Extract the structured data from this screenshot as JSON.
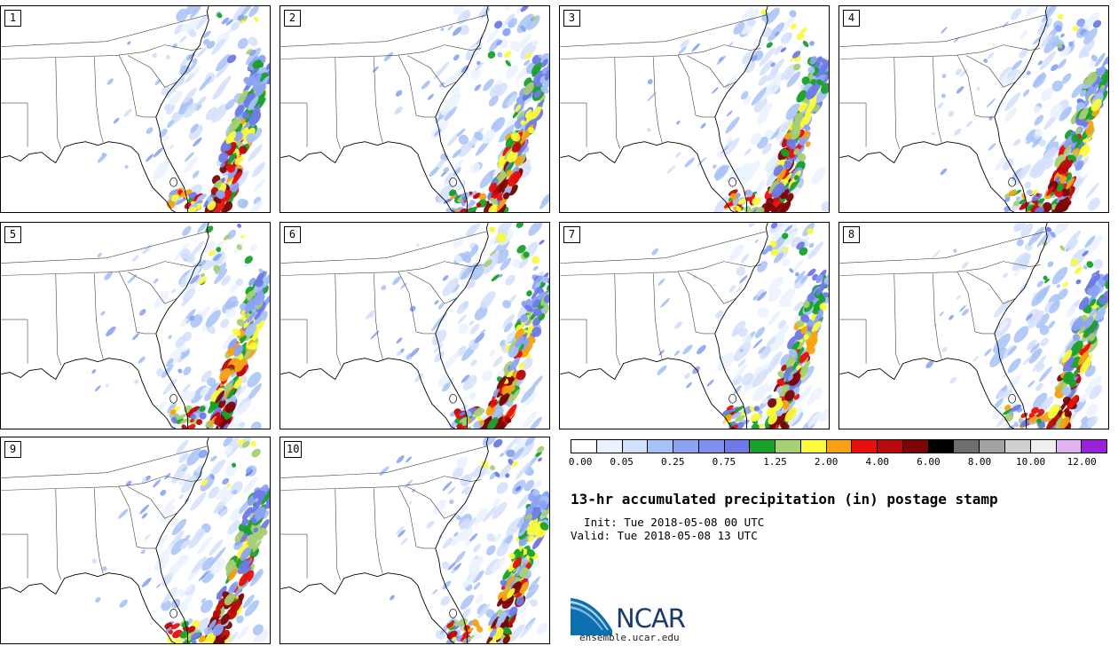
{
  "panels": [
    {
      "label": "1"
    },
    {
      "label": "2"
    },
    {
      "label": "3"
    },
    {
      "label": "4"
    },
    {
      "label": "5"
    },
    {
      "label": "6"
    },
    {
      "label": "7"
    },
    {
      "label": "8"
    },
    {
      "label": "9"
    },
    {
      "label": "10"
    }
  ],
  "colorbar": {
    "colors": [
      "#ffffff",
      "#eaf2fe",
      "#d3e0fb",
      "#a7c2f7",
      "#8ba3f3",
      "#7f90ee",
      "#6f7ae6",
      "#17a12b",
      "#a7cf73",
      "#fbfb3b",
      "#f6a214",
      "#e90f0f",
      "#b80a0a",
      "#7a0505",
      "#000000",
      "#6e6e6e",
      "#a3a3a3",
      "#cfcfcf",
      "#efefef",
      "#e2b2f2",
      "#9b21d8"
    ],
    "labels": [
      "0.00",
      "0.05",
      "0.25",
      "0.75",
      "1.25",
      "2.00",
      "4.00",
      "6.00",
      "8.00",
      "10.00",
      "12.00"
    ]
  },
  "title": "13-hr accumulated precipitation (in) postage stamp",
  "init": "  Init: Tue 2018-05-08 00 UTC",
  "valid": "Valid: Tue 2018-05-08 13 UTC",
  "logo": {
    "text": "NCAR",
    "url": "ensemble.ucar.edu",
    "color": "#0b6fb0"
  }
}
